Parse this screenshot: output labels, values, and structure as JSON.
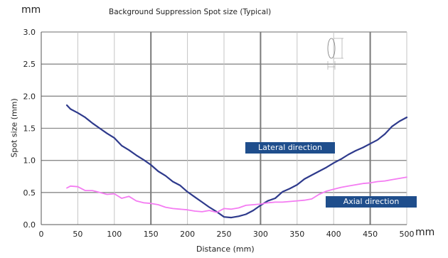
{
  "chart_data": {
    "type": "line",
    "title": "Background Suppression Spot size (Typical)",
    "xlabel": "Distance (mm)",
    "ylabel": "Spot size (mm)",
    "x_unit": "mm",
    "y_unit": "mm",
    "xlim": [
      0,
      500
    ],
    "ylim": [
      0,
      3.0
    ],
    "xticks": [
      "0",
      "50",
      "100",
      "150",
      "200",
      "250",
      "300",
      "350",
      "400",
      "450",
      "500"
    ],
    "yticks": [
      "0.0",
      "0.5",
      "1.0",
      "1.5",
      "2.0",
      "2.5",
      "3.0"
    ],
    "grid": true,
    "annotations": [
      {
        "text": "Lateral direction",
        "series": "lateral"
      },
      {
        "text": "Axial direction",
        "series": "axial"
      }
    ],
    "series": [
      {
        "key": "lateral",
        "color": "#2e3a8c",
        "x": [
          35,
          40,
          50,
          60,
          70,
          80,
          90,
          100,
          110,
          120,
          130,
          140,
          150,
          160,
          170,
          180,
          190,
          200,
          210,
          220,
          230,
          240,
          250,
          260,
          270,
          280,
          290,
          300,
          310,
          320,
          330,
          340,
          350,
          360,
          370,
          380,
          390,
          400,
          410,
          420,
          430,
          440,
          450,
          460,
          470,
          480,
          490,
          500
        ],
        "values": [
          1.86,
          1.8,
          1.74,
          1.67,
          1.58,
          1.5,
          1.42,
          1.35,
          1.23,
          1.16,
          1.08,
          1.01,
          0.93,
          0.83,
          0.76,
          0.67,
          0.61,
          0.51,
          0.43,
          0.35,
          0.27,
          0.2,
          0.12,
          0.11,
          0.13,
          0.16,
          0.22,
          0.3,
          0.37,
          0.41,
          0.51,
          0.56,
          0.62,
          0.71,
          0.77,
          0.83,
          0.89,
          0.96,
          1.02,
          1.09,
          1.15,
          1.2,
          1.26,
          1.32,
          1.41,
          1.53,
          1.61,
          1.67
        ]
      },
      {
        "key": "axial",
        "color": "#f47cf2",
        "x": [
          35,
          40,
          50,
          60,
          70,
          80,
          90,
          100,
          110,
          120,
          130,
          140,
          150,
          160,
          170,
          180,
          190,
          200,
          210,
          220,
          230,
          240,
          250,
          260,
          270,
          280,
          290,
          300,
          310,
          320,
          330,
          340,
          350,
          360,
          370,
          380,
          390,
          400,
          410,
          420,
          430,
          440,
          450,
          460,
          470,
          480,
          490,
          500
        ],
        "values": [
          0.57,
          0.6,
          0.59,
          0.53,
          0.53,
          0.5,
          0.47,
          0.48,
          0.41,
          0.44,
          0.37,
          0.34,
          0.33,
          0.31,
          0.27,
          0.25,
          0.24,
          0.23,
          0.21,
          0.2,
          0.22,
          0.19,
          0.25,
          0.24,
          0.26,
          0.3,
          0.31,
          0.32,
          0.34,
          0.35,
          0.35,
          0.36,
          0.37,
          0.38,
          0.4,
          0.47,
          0.52,
          0.55,
          0.58,
          0.6,
          0.62,
          0.64,
          0.65,
          0.67,
          0.68,
          0.7,
          0.72,
          0.74
        ]
      }
    ]
  }
}
